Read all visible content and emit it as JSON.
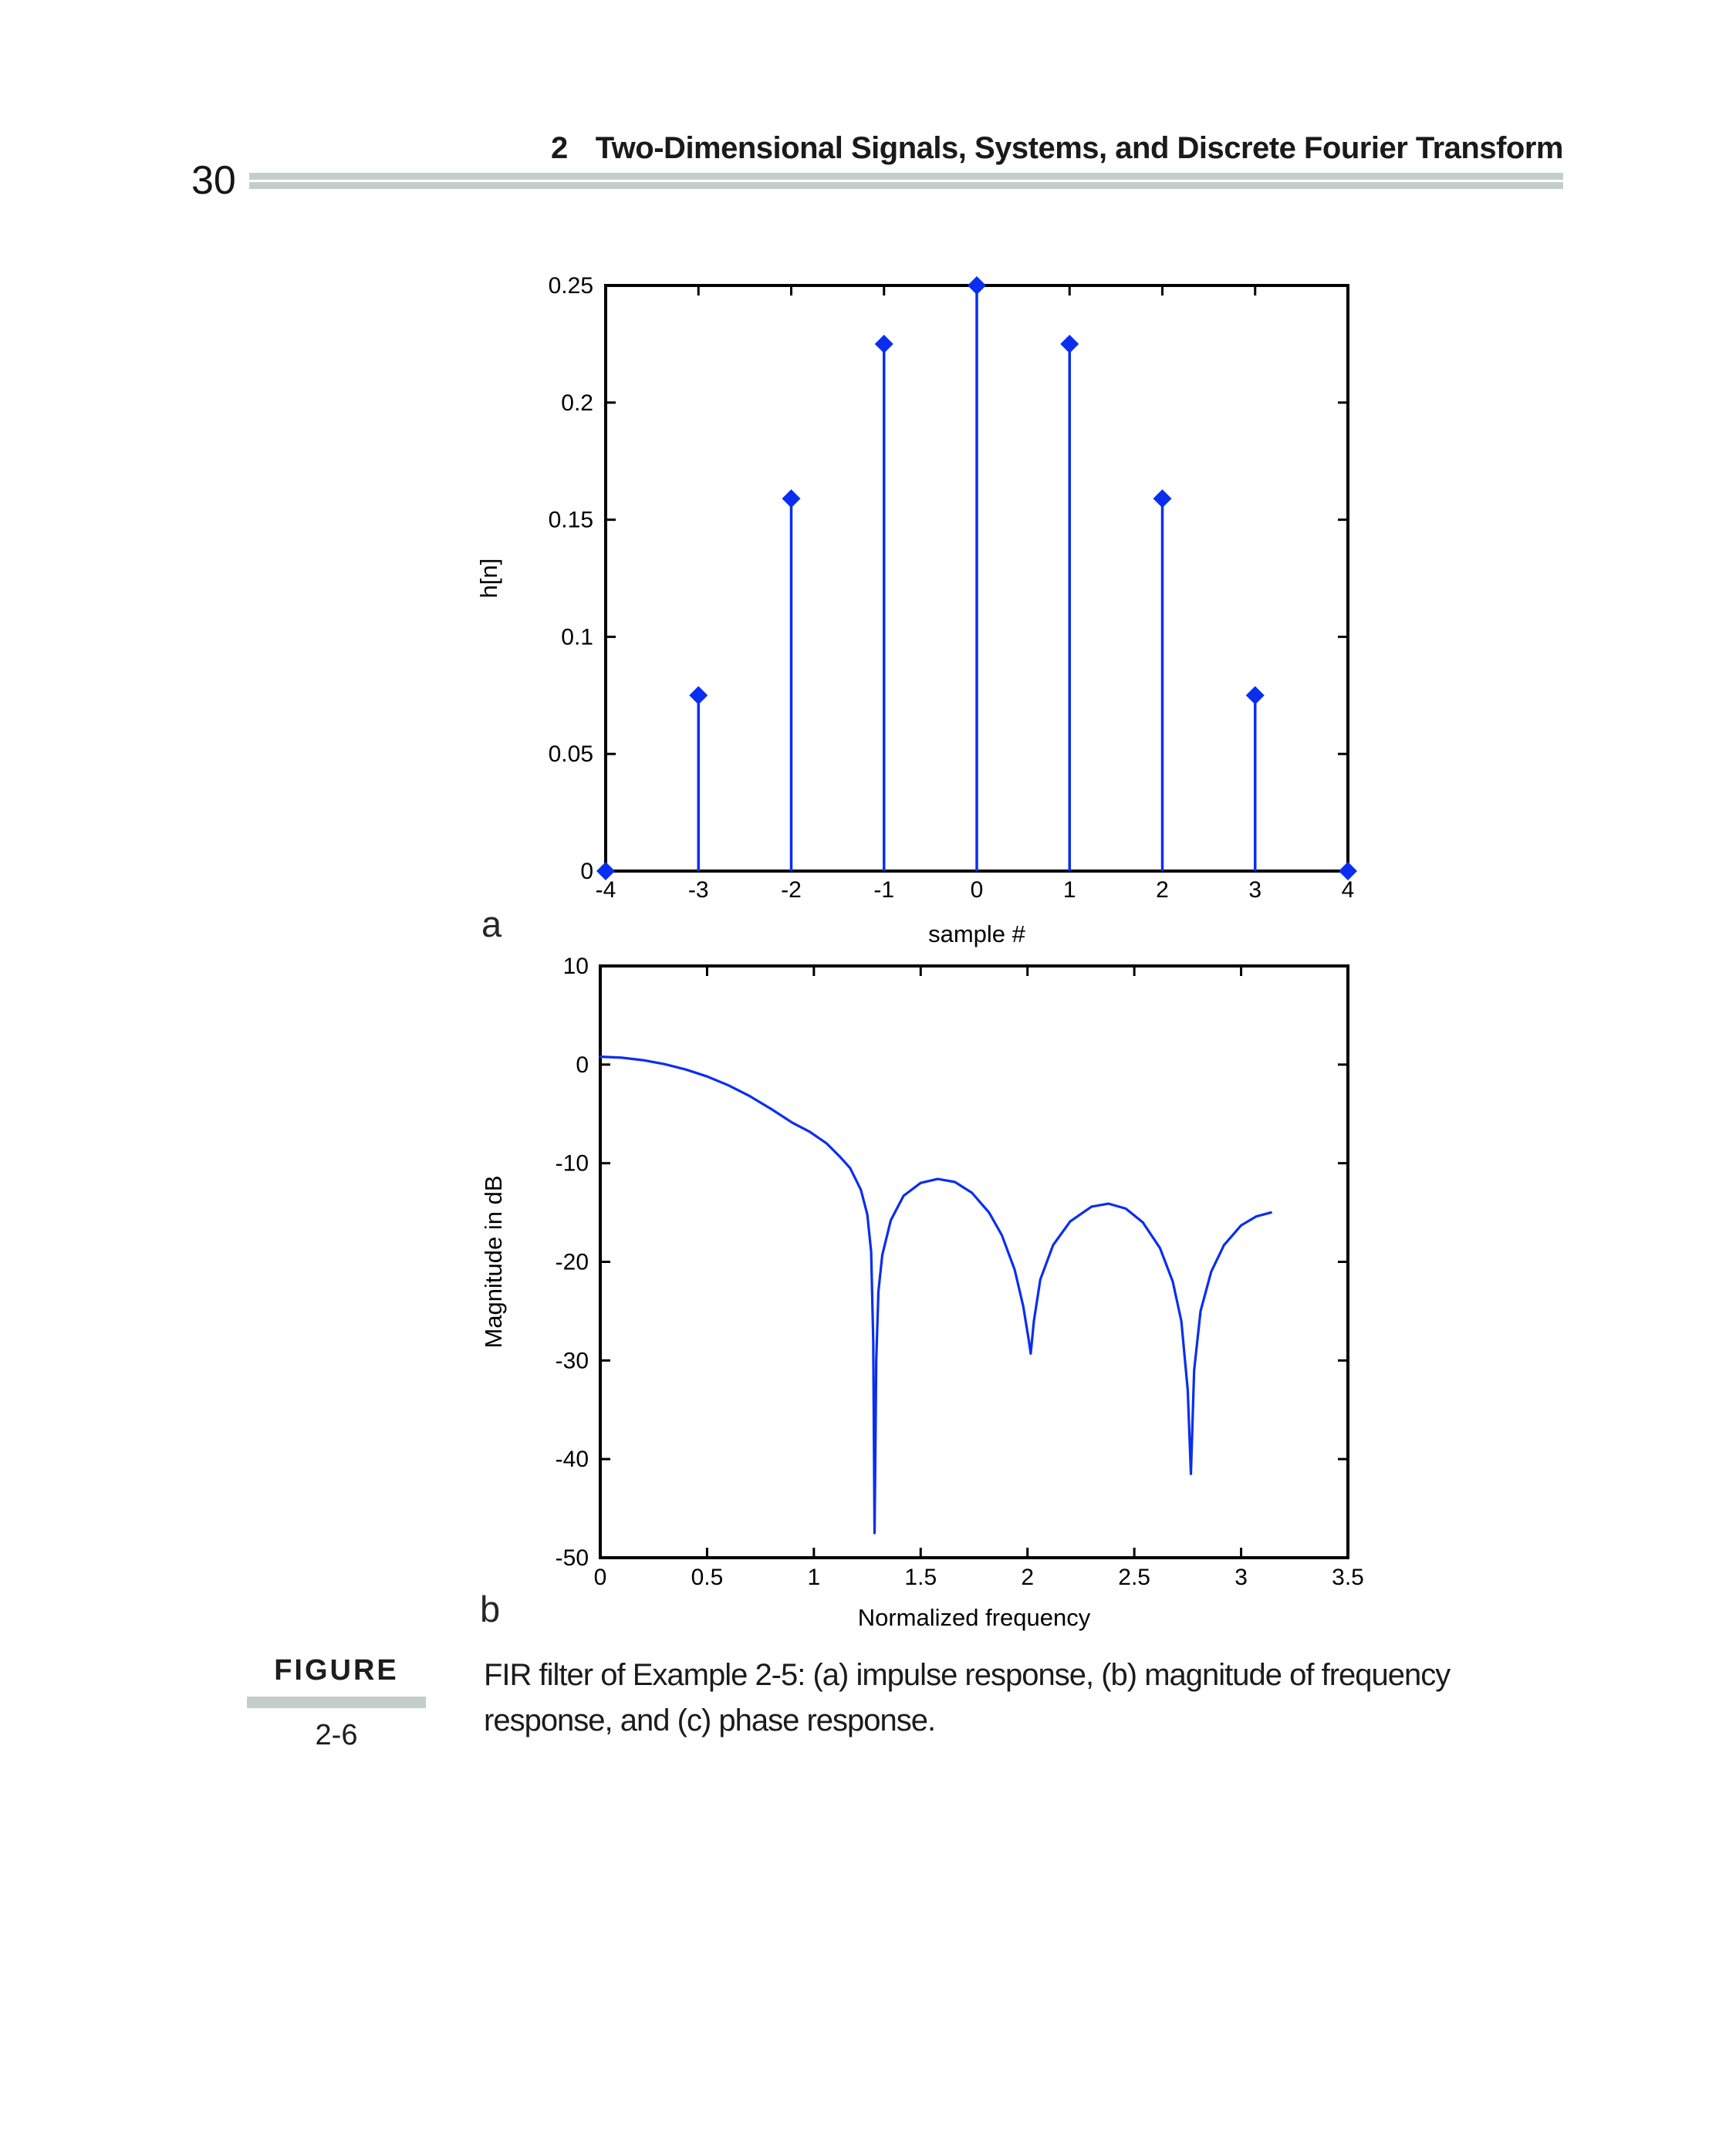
{
  "page": {
    "page_number": "30",
    "header": {
      "chapter_number": "2",
      "title": "Two-Dimensional Signals, Systems, and Discrete Fourier Transform"
    },
    "subfig_a_label": "a",
    "subfig_b_label": "b",
    "figure_label": "FIGURE",
    "figure_number": "2-6",
    "caption_line1": "FIR filter of Example 2-5: (a) impulse response, (b) magnitude of frequency",
    "caption_line2": "response, and (c) phase response."
  },
  "colors": {
    "plot_blue": "#0a2ef0",
    "rule_gray": "#c3cecb",
    "axis_black": "#000000"
  },
  "chart_data": [
    {
      "id": "impulse_response",
      "type": "stem",
      "title": "",
      "xlabel": "sample #",
      "ylabel": "h[n]",
      "xlim": [
        -4,
        4
      ],
      "ylim": [
        0,
        0.25
      ],
      "xticks": [
        -4,
        -3,
        -2,
        -1,
        0,
        1,
        2,
        3,
        4
      ],
      "xtick_labels": [
        "-4",
        "-3",
        "-2",
        "-1",
        "0",
        "1",
        "2",
        "3",
        "4"
      ],
      "yticks": [
        0,
        0.05,
        0.1,
        0.15,
        0.2,
        0.25
      ],
      "ytick_labels": [
        "0",
        "0.05",
        "0.1",
        "0.15",
        "0.2",
        "0.25"
      ],
      "grid": false,
      "legend": null,
      "x": [
        -4,
        -3,
        -2,
        -1,
        0,
        1,
        2,
        3,
        4
      ],
      "values": [
        0,
        0.075,
        0.159,
        0.225,
        0.25,
        0.225,
        0.159,
        0.075,
        0
      ]
    },
    {
      "id": "magnitude_response",
      "type": "line",
      "title": "",
      "xlabel": "Normalized frequency",
      "ylabel": "Magnitude in dB",
      "xlim": [
        0,
        3.5
      ],
      "ylim": [
        -50,
        10
      ],
      "xticks": [
        0,
        0.5,
        1,
        1.5,
        2,
        2.5,
        3,
        3.5
      ],
      "xtick_labels": [
        "0",
        "0.5",
        "1",
        "1.5",
        "2",
        "2.5",
        "3",
        "3.5"
      ],
      "yticks": [
        -50,
        -40,
        -30,
        -20,
        -10,
        0,
        10
      ],
      "ytick_labels": [
        "-50",
        "-40",
        "-30",
        "-20",
        "-10",
        "0",
        "10"
      ],
      "grid": false,
      "legend": null,
      "annotations": {
        "nulls_x": [
          1.284,
          2.015,
          2.765
        ],
        "nulls_db": [
          -47.5,
          -29.3,
          -41.5
        ],
        "lobe_peaks_x": [
          1.58,
          2.38
        ],
        "lobe_peaks_db": [
          -11.6,
          -14.1
        ],
        "start_db": 0.8,
        "end_x": 3.14,
        "end_db": -15.0
      },
      "x": [
        0,
        0.1,
        0.2,
        0.3,
        0.4,
        0.5,
        0.6,
        0.7,
        0.8,
        0.9,
        0.98,
        1.06,
        1.12,
        1.17,
        1.22,
        1.25,
        1.268,
        1.278,
        1.284,
        1.292,
        1.302,
        1.32,
        1.36,
        1.42,
        1.5,
        1.58,
        1.66,
        1.74,
        1.82,
        1.88,
        1.94,
        1.98,
        2.005,
        2.015,
        2.03,
        2.06,
        2.12,
        2.2,
        2.3,
        2.38,
        2.46,
        2.54,
        2.62,
        2.68,
        2.72,
        2.75,
        2.765,
        2.78,
        2.81,
        2.86,
        2.92,
        3.0,
        3.07,
        3.14
      ],
      "y": [
        0.8,
        0.7,
        0.45,
        0.05,
        -0.5,
        -1.2,
        -2.1,
        -3.2,
        -4.5,
        -5.9,
        -6.8,
        -8.0,
        -9.3,
        -10.5,
        -12.7,
        -15.2,
        -19.0,
        -28.0,
        -47.5,
        -30.0,
        -23.0,
        -19.3,
        -15.8,
        -13.3,
        -12.0,
        -11.6,
        -11.9,
        -13.0,
        -15.0,
        -17.3,
        -20.8,
        -24.5,
        -27.8,
        -29.3,
        -26.0,
        -21.8,
        -18.3,
        -15.9,
        -14.4,
        -14.1,
        -14.6,
        -16.0,
        -18.6,
        -22.0,
        -26.0,
        -33.0,
        -41.5,
        -31.0,
        -25.0,
        -21.0,
        -18.3,
        -16.3,
        -15.4,
        -15.0
      ]
    }
  ]
}
